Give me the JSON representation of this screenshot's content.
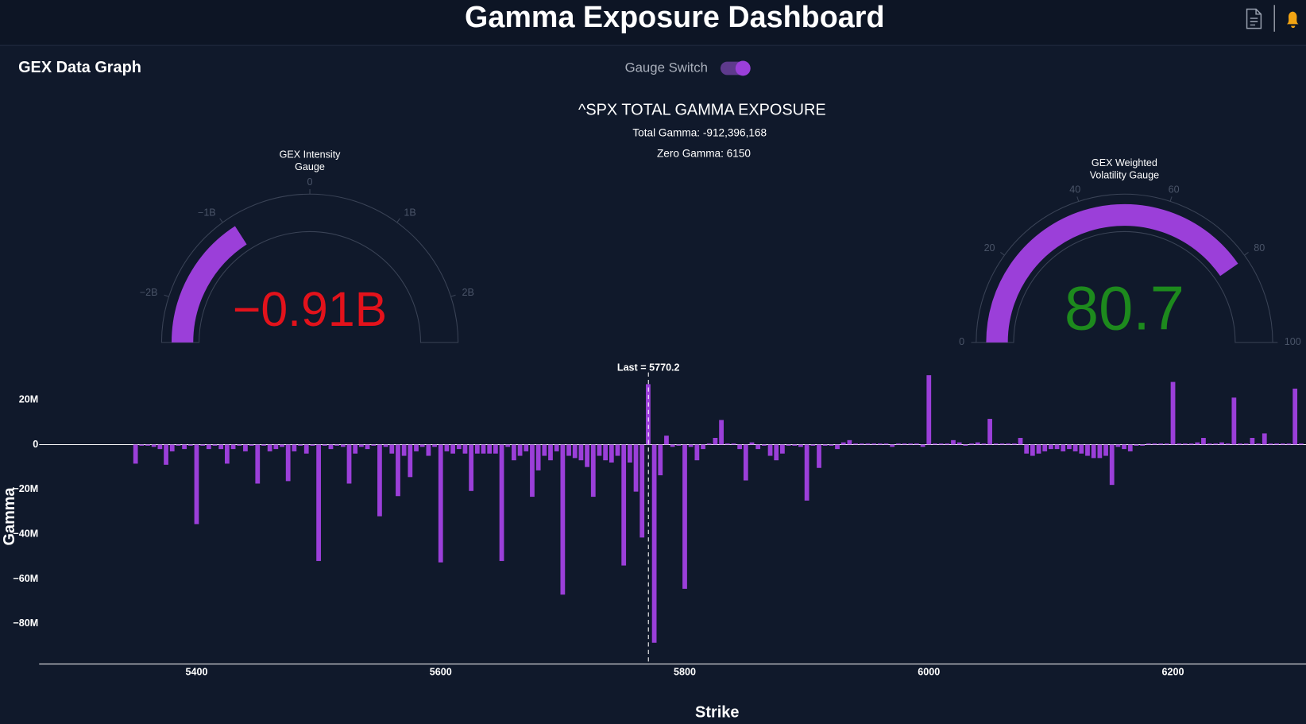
{
  "header": {
    "title": "Gamma Exposure Dashboard"
  },
  "panel": {
    "title": "GEX Data Graph",
    "switch_label": "Gauge Switch"
  },
  "summary": {
    "title": "^SPX TOTAL GAMMA EXPOSURE",
    "total": "Total Gamma: -912,396,168",
    "zero": "Zero Gamma: 6150"
  },
  "chart_data": [
    {
      "type": "gauge",
      "title": [
        "GEX Intensity",
        "Gauge"
      ],
      "value": -0.91,
      "value_label": "−0.91B",
      "range": [
        -2.5,
        2.5
      ],
      "ticks": [
        {
          "value": -2,
          "label": "−2B"
        },
        {
          "value": -1,
          "label": "−1B"
        },
        0,
        {
          "value": 1,
          "label": "1B"
        },
        {
          "value": 2,
          "label": "2B"
        }
      ],
      "color": "#9b3fd9",
      "value_color": "#e3121b"
    },
    {
      "type": "gauge",
      "title": [
        "GEX Weighted",
        "Volatility Gauge"
      ],
      "value": 80.7,
      "range": [
        0,
        100
      ],
      "ticks": [
        0,
        20,
        40,
        60,
        80,
        100
      ],
      "color": "#9b3fd9",
      "value_color": "#1d8a1d"
    },
    {
      "type": "bar",
      "color": "#9b3fd9",
      "xlabel": "Strike",
      "ylabel": "Gamma",
      "xlim": [
        5271,
        6309
      ],
      "ylim": [
        -98,
        33
      ],
      "xticks": [
        5400,
        5600,
        5800,
        6000,
        6200
      ],
      "yticks": [
        {
          "value": 20,
          "label": "20M"
        },
        0,
        {
          "value": -20,
          "label": "−20M"
        },
        {
          "value": -40,
          "label": "−40M"
        },
        {
          "value": -60,
          "label": "−60M"
        },
        {
          "value": -80,
          "label": "−80M"
        }
      ],
      "annotation": {
        "text": "Last = 5770.2",
        "x": 5770.2
      },
      "x": [
        5350,
        5355,
        5360,
        5365,
        5370,
        5375,
        5380,
        5385,
        5390,
        5395,
        5400,
        5405,
        5410,
        5415,
        5420,
        5425,
        5430,
        5435,
        5440,
        5445,
        5450,
        5455,
        5460,
        5465,
        5470,
        5475,
        5480,
        5485,
        5490,
        5495,
        5500,
        5505,
        5510,
        5515,
        5520,
        5525,
        5530,
        5535,
        5540,
        5545,
        5550,
        5555,
        5560,
        5565,
        5570,
        5575,
        5580,
        5585,
        5590,
        5595,
        5600,
        5605,
        5610,
        5615,
        5620,
        5625,
        5630,
        5635,
        5640,
        5645,
        5650,
        5655,
        5660,
        5665,
        5670,
        5675,
        5680,
        5685,
        5690,
        5695,
        5700,
        5705,
        5710,
        5715,
        5720,
        5725,
        5730,
        5735,
        5740,
        5745,
        5750,
        5755,
        5760,
        5765,
        5770,
        5775,
        5780,
        5785,
        5790,
        5795,
        5800,
        5805,
        5810,
        5815,
        5820,
        5825,
        5830,
        5835,
        5840,
        5845,
        5850,
        5855,
        5860,
        5865,
        5870,
        5875,
        5880,
        5885,
        5890,
        5895,
        5900,
        5905,
        5910,
        5915,
        5920,
        5925,
        5930,
        5935,
        5940,
        5945,
        5950,
        5955,
        5960,
        5965,
        5970,
        5975,
        5980,
        5985,
        5990,
        5995,
        6000,
        6005,
        6010,
        6015,
        6020,
        6025,
        6030,
        6035,
        6040,
        6045,
        6050,
        6055,
        6060,
        6065,
        6070,
        6075,
        6080,
        6085,
        6090,
        6095,
        6100,
        6105,
        6110,
        6115,
        6120,
        6125,
        6130,
        6135,
        6140,
        6145,
        6150,
        6155,
        6160,
        6165,
        6170,
        6175,
        6180,
        6185,
        6190,
        6195,
        6200,
        6205,
        6210,
        6215,
        6220,
        6225,
        6230,
        6235,
        6240,
        6245,
        6250,
        6255,
        6260,
        6265,
        6270,
        6275,
        6280,
        6285,
        6290,
        6295,
        6300,
        6305
      ],
      "values": [
        -8.5,
        -0.5,
        -0.5,
        -1,
        -2,
        -9,
        -3,
        -0.5,
        -2,
        -0.5,
        -35.5,
        -0.5,
        -2,
        -0.5,
        -2,
        -8.5,
        -2,
        -0.5,
        -3,
        -0.5,
        -17.4,
        -0.5,
        -3,
        -2,
        -1,
        -16.3,
        -3,
        -0.5,
        -4,
        -0.5,
        -52,
        -0.5,
        -2,
        -0.5,
        -1,
        -17.4,
        -4,
        -1,
        -2,
        -0.5,
        -32,
        -1,
        -4,
        -23,
        -5,
        -14.5,
        -3,
        -1,
        -5,
        -1,
        -52.6,
        -3,
        -4,
        -2,
        -4,
        -20.7,
        -4,
        -4,
        -4,
        -4,
        -52,
        -1,
        -7,
        -5,
        -3,
        -23.3,
        -11.5,
        -5,
        -7,
        -3,
        -67,
        -5,
        -6,
        -7,
        -10,
        -23.3,
        -5,
        -7,
        -8,
        -5,
        -54,
        -8,
        -21,
        -41.5,
        27,
        -88.5,
        -13.7,
        4,
        -1,
        -0.5,
        -64.4,
        -1,
        -7,
        -2,
        0.5,
        3,
        11,
        0.5,
        0.5,
        -2,
        -16,
        1,
        -2,
        -0.5,
        -5,
        -7,
        -4,
        -0.5,
        -0.5,
        -1,
        -25,
        -0.5,
        -10.4,
        -0.5,
        -0.5,
        -2,
        1,
        2,
        0.5,
        0.5,
        0.5,
        0.5,
        0.5,
        0.5,
        -1,
        0.5,
        0.5,
        0.5,
        0.5,
        -1,
        31,
        0.5,
        0.5,
        0.5,
        2,
        1,
        -0.5,
        0.5,
        1,
        0.5,
        11.5,
        0.5,
        0.5,
        0.5,
        0.5,
        3,
        -4,
        -5,
        -4,
        -3,
        -2,
        -2,
        -3,
        -2,
        -3,
        -4,
        -5,
        -6,
        -6,
        -5,
        -18,
        -1,
        -2,
        -3,
        -0.5,
        -0.5,
        0.5,
        0.5,
        0.5,
        0.5,
        28,
        0.5,
        0.5,
        0.5,
        1,
        3,
        0.5,
        0.5,
        1,
        0.5,
        21,
        0.5,
        0.5,
        3,
        0.5,
        5,
        0.5,
        0.5,
        0.5,
        0.5,
        25,
        0.5
      ]
    }
  ]
}
